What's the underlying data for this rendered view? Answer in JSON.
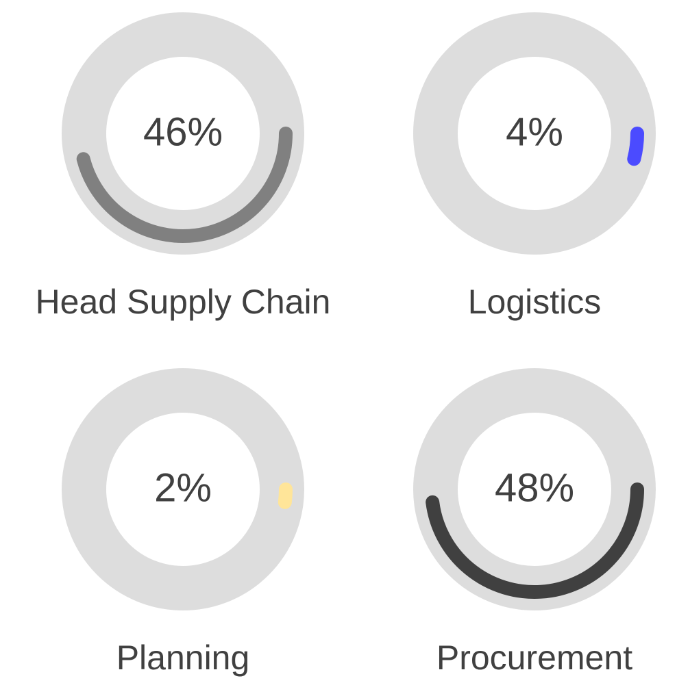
{
  "chart_data": [
    {
      "type": "gauge",
      "label": "Head Supply Chain",
      "value": 46,
      "value_label": "46%",
      "color": "#808080",
      "track_color": "#dddddd",
      "ylim": [
        0,
        100
      ]
    },
    {
      "type": "gauge",
      "label": "Logistics",
      "value": 4,
      "value_label": "4%",
      "color": "#4b4bff",
      "track_color": "#dddddd",
      "ylim": [
        0,
        100
      ]
    },
    {
      "type": "gauge",
      "label": "Planning",
      "value": 2,
      "value_label": "2%",
      "color": "#ffe599",
      "track_color": "#dddddd",
      "ylim": [
        0,
        100
      ]
    },
    {
      "type": "gauge",
      "label": "Procurement",
      "value": 48,
      "value_label": "48%",
      "color": "#404040",
      "track_color": "#dddddd",
      "ylim": [
        0,
        100
      ]
    }
  ]
}
